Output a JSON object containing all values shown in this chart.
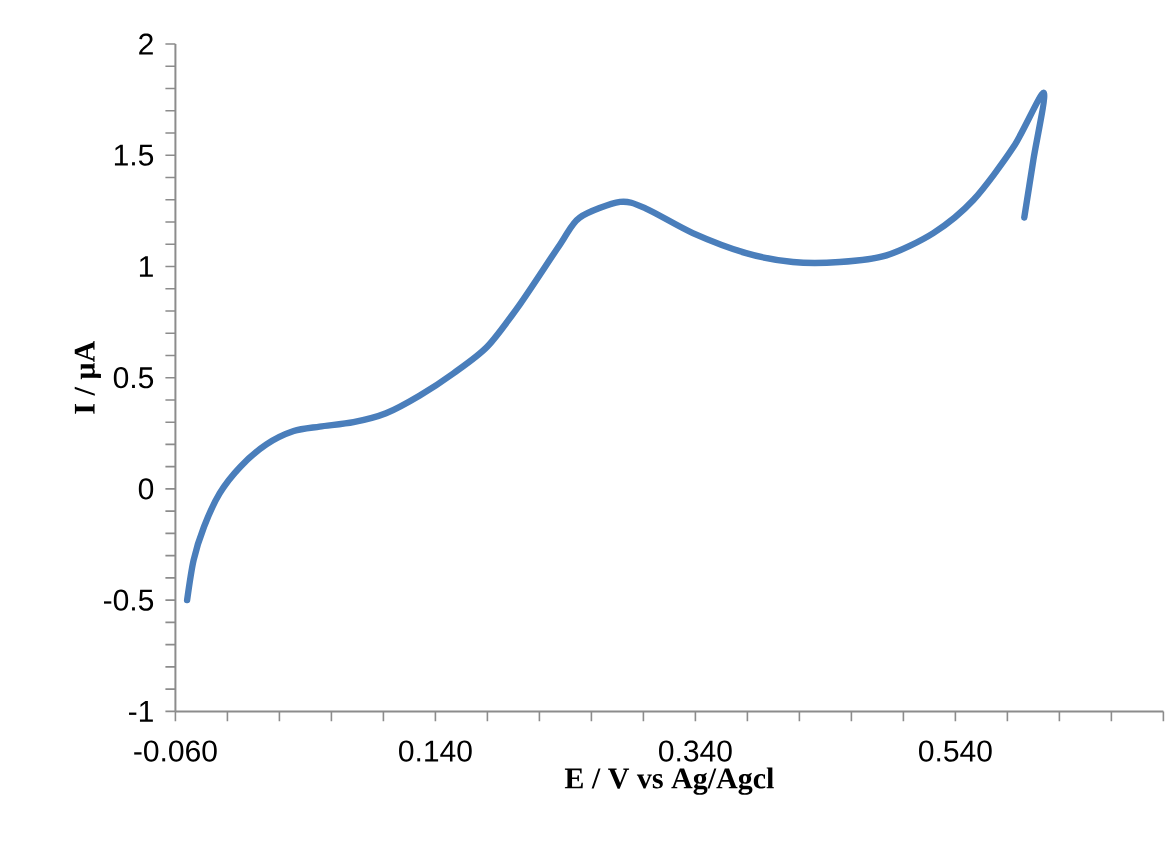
{
  "chart_data": {
    "type": "line",
    "xlabel": "E / V vs Ag/Agcl",
    "ylabel": "I / µA",
    "color": "#4a7ebb",
    "marker": "none",
    "line_style": "solid",
    "xlim": [
      -0.06,
      0.7
    ],
    "ylim": [
      -1,
      2
    ],
    "xticks": [
      {
        "value": -0.06,
        "label": "-0.060"
      },
      {
        "value": -0.02,
        "label": null
      },
      {
        "value": 0.02,
        "label": null
      },
      {
        "value": 0.06,
        "label": null
      },
      {
        "value": 0.1,
        "label": null
      },
      {
        "value": 0.14,
        "label": "0.140"
      },
      {
        "value": 0.18,
        "label": null
      },
      {
        "value": 0.22,
        "label": null
      },
      {
        "value": 0.26,
        "label": null
      },
      {
        "value": 0.3,
        "label": null
      },
      {
        "value": 0.34,
        "label": "0.340"
      },
      {
        "value": 0.38,
        "label": null
      },
      {
        "value": 0.42,
        "label": null
      },
      {
        "value": 0.46,
        "label": null
      },
      {
        "value": 0.5,
        "label": null
      },
      {
        "value": 0.54,
        "label": "0.540"
      },
      {
        "value": 0.58,
        "label": null
      },
      {
        "value": 0.62,
        "label": null
      },
      {
        "value": 0.66,
        "label": null
      },
      {
        "value": 0.7,
        "label": null
      }
    ],
    "yticks": [
      -1,
      {
        "value": -0.9,
        "label": null
      },
      {
        "value": -0.8,
        "label": null
      },
      {
        "value": -0.7,
        "label": null
      },
      {
        "value": -0.6,
        "label": null
      },
      -0.5,
      {
        "value": -0.4,
        "label": null
      },
      {
        "value": -0.3,
        "label": null
      },
      {
        "value": -0.2,
        "label": null
      },
      {
        "value": -0.1,
        "label": null
      },
      0,
      {
        "value": 0.1,
        "label": null
      },
      {
        "value": 0.2,
        "label": null
      },
      {
        "value": 0.3,
        "label": null
      },
      {
        "value": 0.4,
        "label": null
      },
      0.5,
      {
        "value": 0.6,
        "label": null
      },
      {
        "value": 0.7,
        "label": null
      },
      {
        "value": 0.8,
        "label": null
      },
      {
        "value": 0.9,
        "label": null
      },
      1,
      {
        "value": 1.1,
        "label": null
      },
      {
        "value": 1.2,
        "label": null
      },
      {
        "value": 1.3,
        "label": null
      },
      {
        "value": 1.4,
        "label": null
      },
      1.5,
      {
        "value": 1.6,
        "label": null
      },
      {
        "value": 1.7,
        "label": null
      },
      {
        "value": 1.8,
        "label": null
      },
      {
        "value": 1.9,
        "label": null
      },
      2
    ],
    "x": [
      -0.051,
      -0.046,
      -0.038,
      -0.026,
      -0.01,
      0.01,
      0.031,
      0.051,
      0.077,
      0.102,
      0.128,
      0.154,
      0.18,
      0.205,
      0.236,
      0.251,
      0.282,
      0.302,
      0.338,
      0.379,
      0.415,
      0.451,
      0.487,
      0.523,
      0.554,
      0.585,
      0.608,
      0.6,
      0.593
    ],
    "values": [
      -0.5,
      -0.32,
      -0.17,
      -0.02,
      0.1,
      0.2,
      0.26,
      0.28,
      0.3,
      0.34,
      0.42,
      0.52,
      0.64,
      0.83,
      1.1,
      1.22,
      1.29,
      1.26,
      1.15,
      1.06,
      1.02,
      1.02,
      1.05,
      1.15,
      1.3,
      1.54,
      1.78,
      1.48,
      1.22
    ]
  }
}
